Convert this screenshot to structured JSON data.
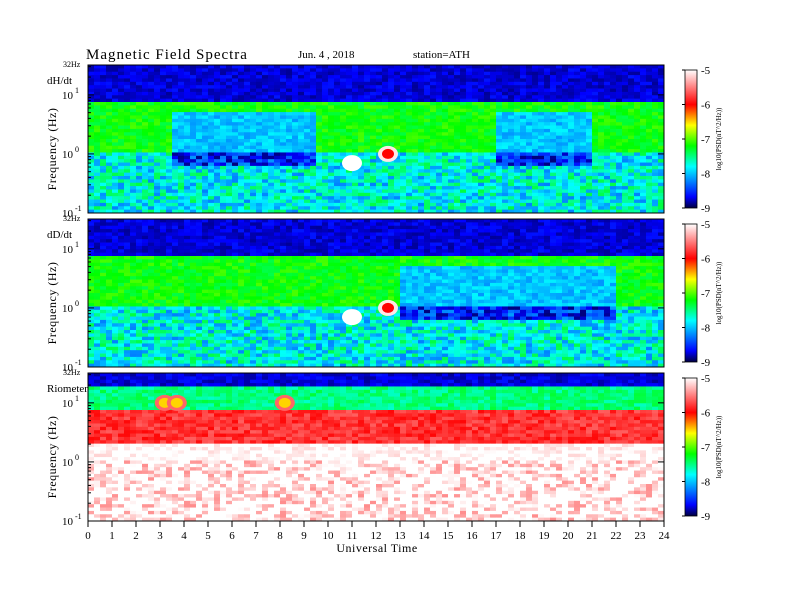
{
  "header": {
    "title": "Magnetic Field Spectra",
    "date": "Jun. 4 , 2018",
    "station": "station=ATH"
  },
  "chart_data": {
    "type": "heatmap",
    "title": "Magnetic Field Spectra",
    "xlabel": "Universal Time",
    "xlim": [
      0,
      24
    ],
    "xticks": [
      "0",
      "1",
      "2",
      "3",
      "4",
      "5",
      "6",
      "7",
      "8",
      "9",
      "10",
      "11",
      "12",
      "13",
      "14",
      "15",
      "16",
      "17",
      "18",
      "19",
      "20",
      "21",
      "22",
      "23",
      "24"
    ],
    "ylabel": "Frequency (Hz)",
    "yscale": "log",
    "ylim": [
      0.1,
      32
    ],
    "yticks": [
      {
        "base": "10",
        "exp": "1",
        "value": 10
      },
      {
        "base": "10",
        "exp": "0",
        "value": 1
      },
      {
        "base": "10",
        "exp": "-1",
        "value": 0.1
      }
    ],
    "ytop_label": "32Hz",
    "colorbar": {
      "label": "log10(PSD(nT^2/Hz))",
      "range": [
        -9,
        -5
      ],
      "ticks": [
        "-5",
        "-6",
        "-7",
        "-8",
        "-9"
      ],
      "colors": [
        "#000000",
        "#0000ff",
        "#00ffff",
        "#00ff00",
        "#ffff00",
        "#ff0000",
        "#ffffff"
      ]
    },
    "panels": [
      {
        "name": "dH/dt",
        "bands": [
          {
            "fmin": 8,
            "fmax": 32,
            "level": -8.8,
            "note": "dark blue high-frequency band"
          },
          {
            "fmin": 1,
            "fmax": 8,
            "level": -7.2,
            "note": "green mid band"
          },
          {
            "fmin": 0.1,
            "fmax": 1,
            "level": -7.8,
            "note": "noisy cyan/blue low band"
          }
        ],
        "quiet_interval_ut": [
          [
            3.5,
            9.5
          ],
          [
            17,
            21
          ]
        ],
        "events": [
          {
            "ut": 11.0,
            "freq": 0.7,
            "level": -5.0
          },
          {
            "ut": 12.5,
            "freq": 1.0,
            "level": -6.0
          }
        ]
      },
      {
        "name": "dD/dt",
        "bands": [
          {
            "fmin": 8,
            "fmax": 32,
            "level": -8.8
          },
          {
            "fmin": 1,
            "fmax": 8,
            "level": -7.2
          },
          {
            "fmin": 0.1,
            "fmax": 1,
            "level": -7.8
          }
        ],
        "quiet_interval_ut": [
          [
            13,
            22
          ]
        ],
        "events": [
          {
            "ut": 11.0,
            "freq": 0.7,
            "level": -5.0
          },
          {
            "ut": 12.5,
            "freq": 1.0,
            "level": -6.0
          }
        ]
      },
      {
        "name": "Riometer",
        "bands": [
          {
            "fmin": 20,
            "fmax": 32,
            "level": -8.8
          },
          {
            "fmin": 8,
            "fmax": 20,
            "level": -7.5
          },
          {
            "fmin": 2,
            "fmax": 8,
            "level": -5.8
          },
          {
            "fmin": 0.1,
            "fmax": 2,
            "level": -5.0
          }
        ],
        "events": [
          {
            "ut": 3.2,
            "freq": 10,
            "level": -6.5
          },
          {
            "ut": 3.7,
            "freq": 10,
            "level": -6.5
          },
          {
            "ut": 8.2,
            "freq": 10,
            "level": -6.5
          }
        ]
      }
    ]
  }
}
